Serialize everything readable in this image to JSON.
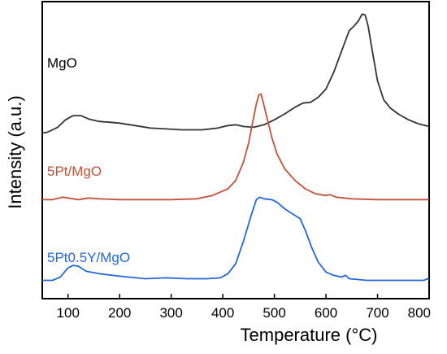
{
  "chart_data": {
    "type": "line",
    "xlabel": "Temperature (°C)",
    "ylabel": "Intensity (a.u.)",
    "xlim": [
      50,
      800
    ],
    "x_ticks": [
      "100",
      "200",
      "300",
      "400",
      "500",
      "600",
      "700",
      "800"
    ],
    "y_ticks_shown": false,
    "grid": false,
    "legend": "none (series labelled inline, left side)",
    "series": [
      {
        "name": "MgO",
        "color": "#333333",
        "points": [
          [
            50,
            1.77
          ],
          [
            60,
            1.78
          ],
          [
            80,
            1.84
          ],
          [
            95,
            1.93
          ],
          [
            110,
            1.98
          ],
          [
            125,
            1.98
          ],
          [
            140,
            1.94
          ],
          [
            160,
            1.91
          ],
          [
            180,
            1.9
          ],
          [
            200,
            1.89
          ],
          [
            230,
            1.86
          ],
          [
            260,
            1.83
          ],
          [
            290,
            1.82
          ],
          [
            320,
            1.81
          ],
          [
            360,
            1.81
          ],
          [
            390,
            1.83
          ],
          [
            410,
            1.86
          ],
          [
            425,
            1.87
          ],
          [
            440,
            1.85
          ],
          [
            460,
            1.84
          ],
          [
            480,
            1.87
          ],
          [
            500,
            1.93
          ],
          [
            520,
            2.0
          ],
          [
            540,
            2.08
          ],
          [
            555,
            2.13
          ],
          [
            570,
            2.14
          ],
          [
            585,
            2.2
          ],
          [
            600,
            2.3
          ],
          [
            615,
            2.5
          ],
          [
            630,
            2.75
          ],
          [
            645,
            3.0
          ],
          [
            655,
            3.06
          ],
          [
            663,
            3.12
          ],
          [
            670,
            3.2
          ],
          [
            676,
            3.19
          ],
          [
            682,
            3.05
          ],
          [
            690,
            2.75
          ],
          [
            700,
            2.4
          ],
          [
            712,
            2.17
          ],
          [
            725,
            2.07
          ],
          [
            740,
            2.0
          ],
          [
            760,
            1.93
          ],
          [
            780,
            1.88
          ],
          [
            800,
            1.85
          ]
        ]
      },
      {
        "name": "5Pt/MgO",
        "color": "#c0533d",
        "points": [
          [
            50,
            0.97
          ],
          [
            70,
            0.97
          ],
          [
            90,
            1.0
          ],
          [
            100,
            0.99
          ],
          [
            120,
            0.97
          ],
          [
            140,
            0.99
          ],
          [
            160,
            0.98
          ],
          [
            200,
            0.97
          ],
          [
            250,
            0.97
          ],
          [
            300,
            0.97
          ],
          [
            350,
            0.98
          ],
          [
            380,
            1.02
          ],
          [
            395,
            1.06
          ],
          [
            410,
            1.1
          ],
          [
            425,
            1.2
          ],
          [
            440,
            1.42
          ],
          [
            450,
            1.65
          ],
          [
            458,
            1.9
          ],
          [
            465,
            2.12
          ],
          [
            470,
            2.23
          ],
          [
            474,
            2.24
          ],
          [
            478,
            2.15
          ],
          [
            485,
            1.97
          ],
          [
            495,
            1.72
          ],
          [
            505,
            1.52
          ],
          [
            520,
            1.34
          ],
          [
            540,
            1.2
          ],
          [
            560,
            1.1
          ],
          [
            580,
            1.04
          ],
          [
            600,
            1.02
          ],
          [
            608,
            1.03
          ],
          [
            620,
            1.0
          ],
          [
            650,
            0.98
          ],
          [
            700,
            0.97
          ],
          [
            750,
            0.97
          ],
          [
            800,
            0.97
          ]
        ]
      },
      {
        "name": "5Pt0.5Y/MgO",
        "color": "#2467db",
        "points": [
          [
            50,
            0.0
          ],
          [
            70,
            0.0
          ],
          [
            85,
            0.04
          ],
          [
            100,
            0.15
          ],
          [
            110,
            0.18
          ],
          [
            120,
            0.17
          ],
          [
            135,
            0.11
          ],
          [
            160,
            0.08
          ],
          [
            200,
            0.05
          ],
          [
            250,
            0.02
          ],
          [
            290,
            0.03
          ],
          [
            330,
            0.02
          ],
          [
            370,
            0.02
          ],
          [
            395,
            0.03
          ],
          [
            410,
            0.08
          ],
          [
            425,
            0.2
          ],
          [
            440,
            0.47
          ],
          [
            455,
            0.78
          ],
          [
            465,
            0.97
          ],
          [
            472,
            1.0
          ],
          [
            480,
            0.98
          ],
          [
            495,
            0.97
          ],
          [
            505,
            0.94
          ],
          [
            520,
            0.86
          ],
          [
            535,
            0.8
          ],
          [
            550,
            0.74
          ],
          [
            560,
            0.6
          ],
          [
            572,
            0.4
          ],
          [
            585,
            0.22
          ],
          [
            600,
            0.1
          ],
          [
            615,
            0.06
          ],
          [
            630,
            0.04
          ],
          [
            638,
            0.06
          ],
          [
            645,
            0.02
          ],
          [
            680,
            0.0
          ],
          [
            720,
            0.0
          ],
          [
            760,
            0.0
          ],
          [
            790,
            0.0
          ],
          [
            796,
            0.02
          ],
          [
            800,
            0.0
          ]
        ]
      }
    ]
  }
}
